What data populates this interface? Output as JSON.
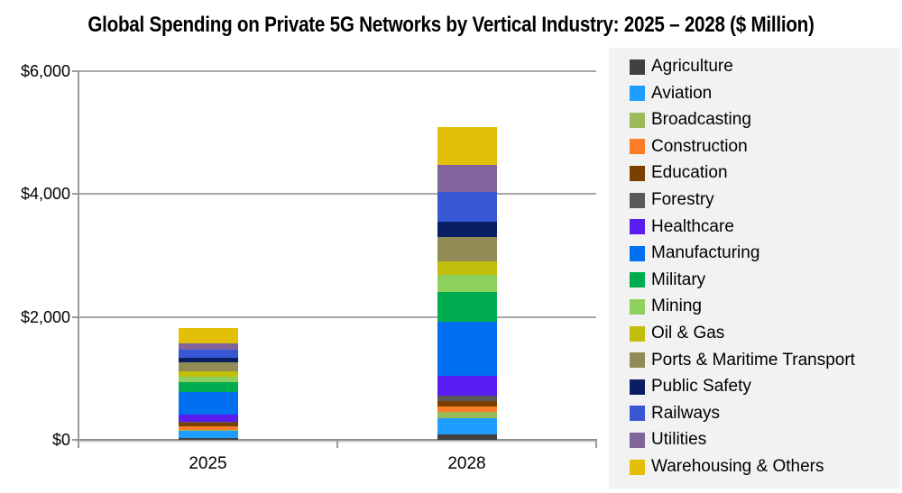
{
  "chart_data": {
    "type": "bar",
    "stacked": true,
    "title": "Global Spending on Private 5G Networks by Vertical Industry: 2025 – 2028 ($ Million)",
    "categories": [
      "2025",
      "2028"
    ],
    "series": [
      {
        "name": "Agriculture",
        "color": "#404040",
        "values": [
          25,
          95
        ]
      },
      {
        "name": "Aviation",
        "color": "#1e9eff",
        "values": [
          120,
          260
        ]
      },
      {
        "name": "Broadcasting",
        "color": "#9abb59",
        "values": [
          15,
          95
        ]
      },
      {
        "name": "Construction",
        "color": "#fb7d28",
        "values": [
          60,
          95
        ]
      },
      {
        "name": "Education",
        "color": "#7b3f00",
        "values": [
          55,
          90
        ]
      },
      {
        "name": "Forestry",
        "color": "#595959",
        "values": [
          15,
          85
        ]
      },
      {
        "name": "Healthcare",
        "color": "#5a1cf0",
        "values": [
          115,
          320
        ]
      },
      {
        "name": "Manufacturing",
        "color": "#0070f0",
        "values": [
          370,
          875
        ]
      },
      {
        "name": "Military",
        "color": "#00ac50",
        "values": [
          170,
          490
        ]
      },
      {
        "name": "Mining",
        "color": "#8ed05e",
        "values": [
          75,
          285
        ]
      },
      {
        "name": "Oil & Gas",
        "color": "#c0bf0b",
        "values": [
          90,
          215
        ]
      },
      {
        "name": "Ports & Maritime Transport",
        "color": "#938b55",
        "values": [
          155,
          390
        ]
      },
      {
        "name": "Public Safety",
        "color": "#0a1f62",
        "values": [
          75,
          260
        ]
      },
      {
        "name": "Railways",
        "color": "#3757d4",
        "values": [
          125,
          475
        ]
      },
      {
        "name": "Utilities",
        "color": "#80649b",
        "values": [
          100,
          440
        ]
      },
      {
        "name": "Warehousing & Others",
        "color": "#e3c008",
        "values": [
          255,
          620
        ]
      }
    ],
    "ylim": [
      0,
      6000
    ],
    "y_ticks": [
      {
        "value": 6000,
        "label": "$6,000"
      },
      {
        "value": 4000,
        "label": "$4,000"
      },
      {
        "value": 2000,
        "label": "$2,000"
      },
      {
        "value": 0,
        "label": "$0"
      }
    ],
    "xlabel": "",
    "ylabel": "",
    "grid": true,
    "legend_position": "right"
  },
  "colors": {
    "grid": "#a6a6a6",
    "axis": "#9b9b9b",
    "legend_background": "#f2f2f2",
    "text": "#000000",
    "background": "#ffffff"
  }
}
